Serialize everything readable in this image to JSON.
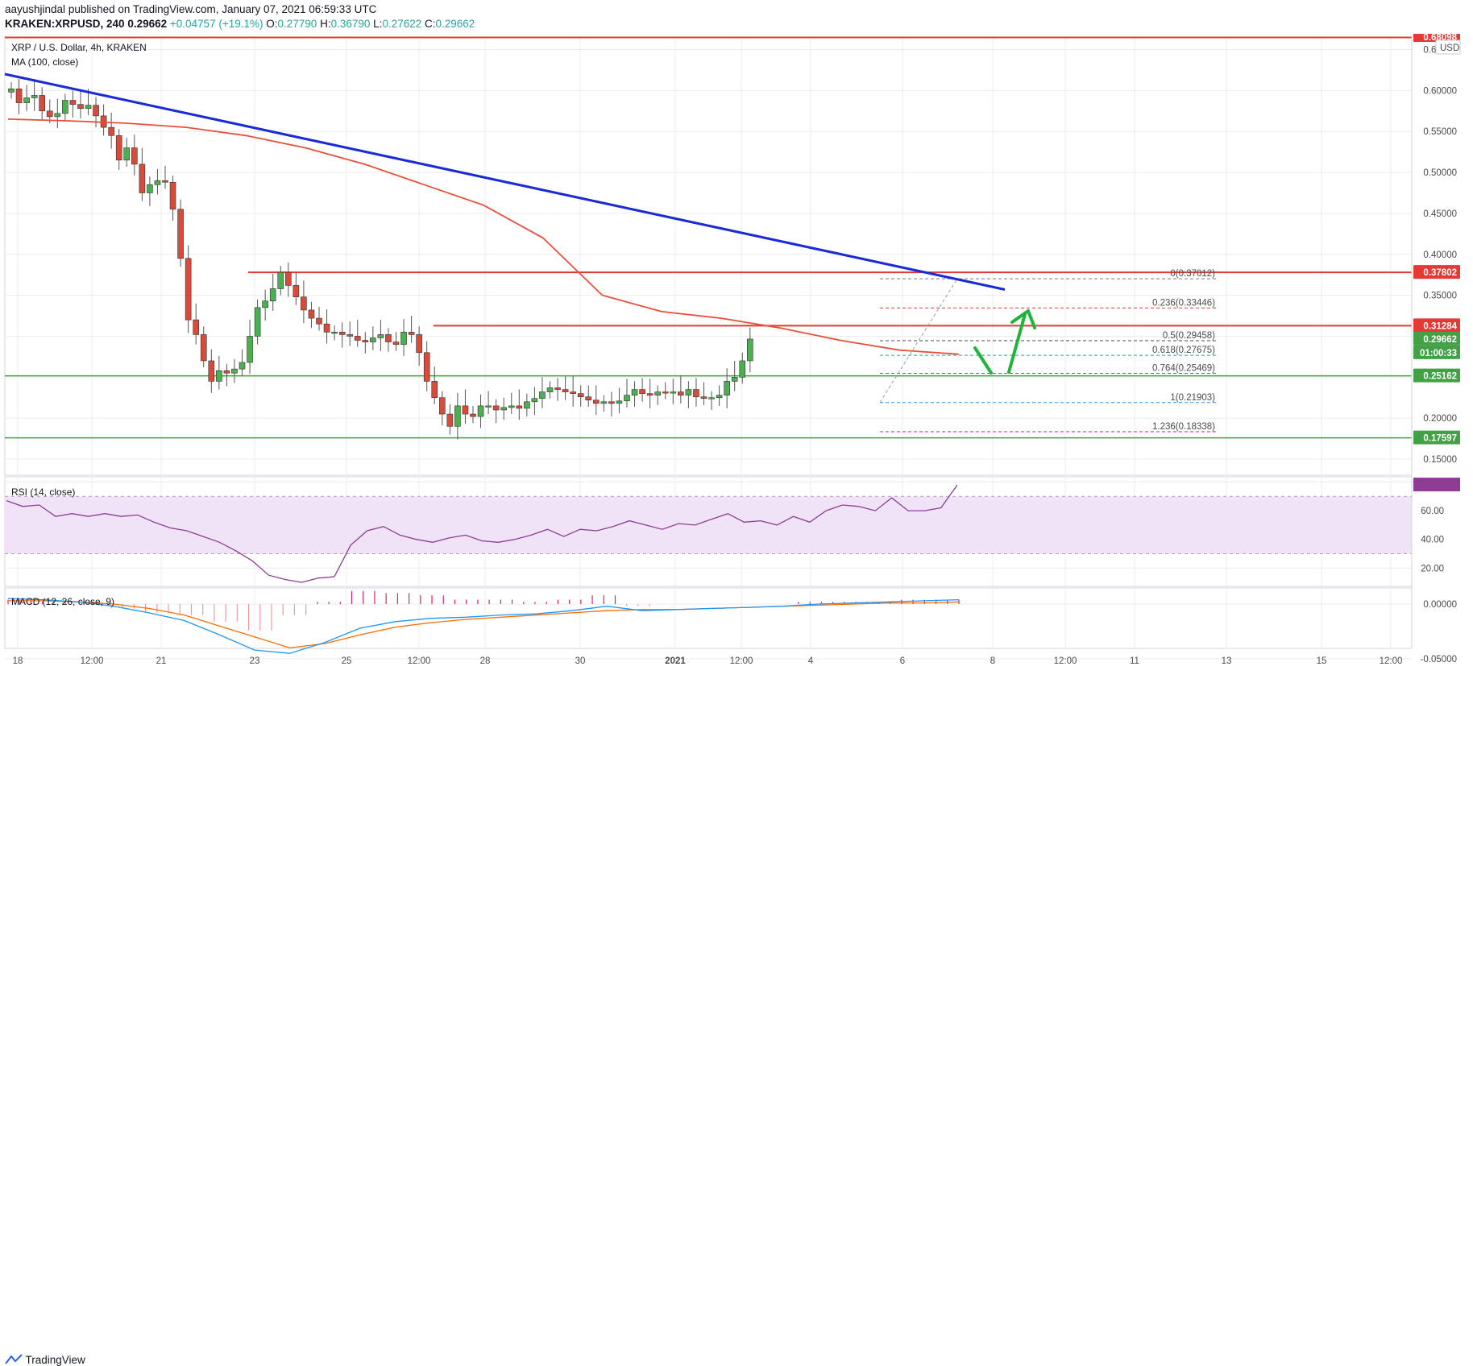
{
  "header": {
    "author": "aayushjindal",
    "published_text": "published on TradingView.com, January 07, 2021 06:59:33 UTC",
    "symbol": "KRAKEN:XRPUSD, 240",
    "price": "0.29662",
    "change": "+0.04757 (+19.1%)",
    "o_label": "O:",
    "o_value": "0.27790",
    "h_label": "H:",
    "h_value": "0.36790",
    "l_label": "L:",
    "l_value": "0.27622",
    "c_label": "C:",
    "c_value": "0.29662"
  },
  "panel_titles": {
    "main": "XRP / U.S. Dollar, 4h, KRAKEN",
    "ma": "MA (100, close)",
    "rsi": "RSI (14, close)",
    "macd": "MACD (12, 26, close, 9)",
    "currency": "USD"
  },
  "colors": {
    "up": "#4caf50",
    "down": "#d84a3a",
    "ma": "#e8503a",
    "trendline": "#1a2bd6",
    "resistance": "#e53935",
    "support": "#43a047",
    "rsi_line": "#8e3c96",
    "rsi_band": "#f1e3f7",
    "macd_line": "#2196f3",
    "signal_line": "#ff6d00",
    "hist_pos": "#e91e63",
    "arrow": "#1eb53a"
  },
  "price_axis": {
    "ticks": [
      "0.65000",
      "0.60000",
      "0.55000",
      "0.50000",
      "0.45000",
      "0.40000",
      "0.35000",
      "0.20000",
      "0.15000"
    ],
    "top_tag": "0.68098"
  },
  "price_tags": [
    {
      "text": "0.37802",
      "color": "#e53935"
    },
    {
      "text": "0.31284",
      "color": "#e53935"
    },
    {
      "text": "0.29662",
      "color": "#43a047"
    },
    {
      "text": "01:00:33",
      "color": "#43a047"
    },
    {
      "text": "0.25162",
      "color": "#43a047"
    },
    {
      "text": "0.17597",
      "color": "#43a047"
    }
  ],
  "fib_labels": [
    {
      "text": "0(0.37012)",
      "color": "#787b86"
    },
    {
      "text": "0.236(0.33446)",
      "color": "#e53935"
    },
    {
      "text": "0.5(0.29458)",
      "color": "#4a4a4a"
    },
    {
      "text": "0.618(0.27675)",
      "color": "#26a69a"
    },
    {
      "text": "0.764(0.25469)",
      "color": "#1e88a8"
    },
    {
      "text": "1(0.21903)",
      "color": "#2196f3"
    },
    {
      "text": "1.236(0.18338)",
      "color": "#9c27b0"
    }
  ],
  "rsi_axis": {
    "ticks": [
      "80.00",
      "60.00",
      "40.00",
      "20.00"
    ]
  },
  "macd_axis": {
    "ticks": [
      "0.00000",
      "-0.05000"
    ]
  },
  "time_axis": {
    "labels": [
      "18",
      "12:00",
      "21",
      "23",
      "25",
      "12:00",
      "28",
      "30",
      "2021",
      "12:00",
      "4",
      "6",
      "8",
      "12:00",
      "11",
      "13",
      "15",
      "12:00"
    ]
  },
  "footer": {
    "brand": "TradingView"
  },
  "chart_data": {
    "type": "candlestick",
    "title": "XRP / U.S. Dollar, 4h, KRAKEN",
    "ylim": [
      0.14,
      0.68
    ],
    "levels": {
      "resistance": [
        0.37802,
        0.31284
      ],
      "support": [
        0.25162,
        0.17597
      ],
      "fibonacci": [
        0.37012,
        0.33446,
        0.29458,
        0.27675,
        0.25469,
        0.21903,
        0.18338
      ],
      "trendline": [
        [
          0,
          0.62
        ],
        [
          1040,
          0.357
        ]
      ]
    },
    "closes": [
      0.602,
      0.585,
      0.591,
      0.594,
      0.575,
      0.568,
      0.572,
      0.588,
      0.583,
      0.578,
      0.582,
      0.569,
      0.555,
      0.545,
      0.515,
      0.53,
      0.51,
      0.475,
      0.485,
      0.49,
      0.488,
      0.455,
      0.395,
      0.32,
      0.302,
      0.27,
      0.245,
      0.258,
      0.255,
      0.26,
      0.268,
      0.3,
      0.335,
      0.343,
      0.358,
      0.378,
      0.362,
      0.348,
      0.332,
      0.322,
      0.315,
      0.305,
      0.305,
      0.302,
      0.3,
      0.295,
      0.293,
      0.298,
      0.302,
      0.293,
      0.29,
      0.305,
      0.302,
      0.28,
      0.245,
      0.225,
      0.205,
      0.19,
      0.215,
      0.205,
      0.202,
      0.215,
      0.215,
      0.21,
      0.213,
      0.215,
      0.212,
      0.22,
      0.224,
      0.232,
      0.237,
      0.235,
      0.232,
      0.23,
      0.226,
      0.222,
      0.218,
      0.22,
      0.218,
      0.221,
      0.228,
      0.235,
      0.23,
      0.228,
      0.232,
      0.231,
      0.232,
      0.228,
      0.235,
      0.226,
      0.224,
      0.225,
      0.228,
      0.245,
      0.25,
      0.27,
      0.2966
    ],
    "ma": [
      0.565,
      0.563,
      0.56,
      0.555,
      0.545,
      0.53,
      0.51,
      0.485,
      0.46,
      0.42,
      0.35,
      0.33,
      0.322,
      0.31,
      0.295,
      0.283,
      0.278
    ],
    "rsi": [
      67,
      63,
      64,
      56,
      58,
      56,
      58,
      56,
      57,
      52,
      48,
      46,
      42,
      38,
      32,
      25,
      15,
      12,
      10,
      13,
      14,
      36,
      46,
      49,
      43,
      40,
      38,
      41,
      43,
      39,
      38,
      40,
      43,
      47,
      42,
      47,
      46,
      49,
      53,
      50,
      47,
      51,
      50,
      54,
      58,
      52,
      53,
      50,
      56,
      52,
      60,
      64,
      63,
      60,
      69,
      60,
      60,
      62,
      78
    ],
    "macd": [
      0.005,
      0.004,
      0.002,
      -0.002,
      -0.008,
      -0.015,
      -0.028,
      -0.042,
      -0.045,
      -0.035,
      -0.022,
      -0.016,
      -0.013,
      -0.012,
      -0.01,
      -0.009,
      -0.006,
      -0.002,
      -0.006,
      -0.005,
      -0.004,
      -0.003,
      -0.002,
      0.0,
      0.001,
      0.002,
      0.003,
      0.004
    ],
    "signal": [
      0.003,
      0.003,
      0.002,
      0.0,
      -0.004,
      -0.01,
      -0.02,
      -0.03,
      -0.04,
      -0.036,
      -0.028,
      -0.021,
      -0.017,
      -0.014,
      -0.012,
      -0.01,
      -0.008,
      -0.006,
      -0.005,
      -0.005,
      -0.004,
      -0.003,
      -0.002,
      -0.001,
      0.0,
      0.001,
      0.001,
      0.002
    ]
  }
}
